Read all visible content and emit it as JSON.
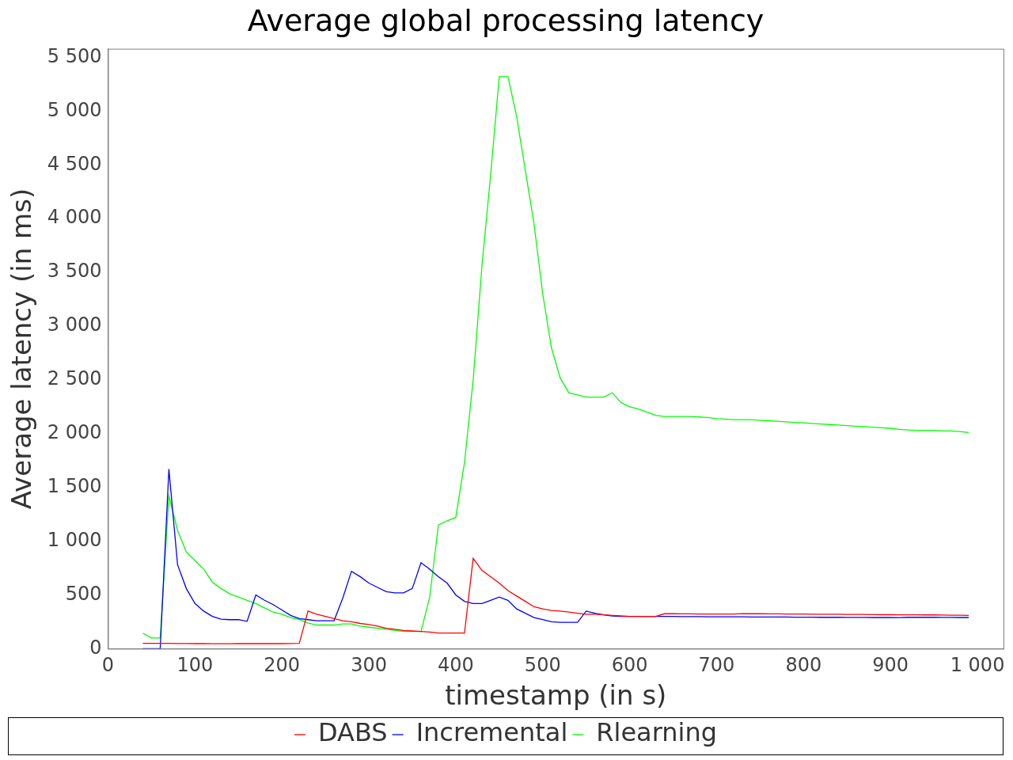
{
  "chart_data": {
    "type": "line",
    "title": "Average global processing latency",
    "x_label": "timestamp (in s)",
    "y_label": "Average latency (in ms)",
    "x": [
      40,
      50,
      60,
      70,
      80,
      90,
      100,
      110,
      120,
      130,
      140,
      150,
      160,
      170,
      180,
      190,
      200,
      210,
      220,
      230,
      240,
      250,
      260,
      270,
      280,
      290,
      300,
      310,
      320,
      330,
      340,
      350,
      360,
      370,
      380,
      390,
      400,
      410,
      420,
      430,
      440,
      450,
      460,
      470,
      480,
      490,
      500,
      510,
      520,
      530,
      540,
      550,
      560,
      570,
      580,
      590,
      600,
      610,
      620,
      630,
      640,
      650,
      660,
      670,
      680,
      690,
      700,
      710,
      720,
      730,
      740,
      750,
      760,
      770,
      780,
      790,
      800,
      810,
      820,
      830,
      840,
      850,
      860,
      870,
      880,
      890,
      900,
      910,
      920,
      930,
      940,
      950,
      960,
      970,
      980,
      990
    ],
    "series": [
      {
        "name": "DABS",
        "color": "#ff0000",
        "values": [
          50,
          50,
          50,
          50,
          48,
          48,
          47,
          47,
          46,
          46,
          46,
          47,
          47,
          47,
          47,
          47,
          47,
          48,
          50,
          350,
          320,
          300,
          280,
          260,
          250,
          235,
          225,
          210,
          190,
          180,
          170,
          165,
          160,
          155,
          145,
          145,
          145,
          145,
          840,
          730,
          670,
          610,
          540,
          490,
          440,
          390,
          370,
          355,
          350,
          340,
          330,
          320,
          320,
          315,
          310,
          305,
          300,
          300,
          300,
          300,
          325,
          325,
          324,
          324,
          323,
          323,
          322,
          322,
          322,
          326,
          325,
          325,
          324,
          324,
          323,
          322,
          322,
          321,
          320,
          320,
          320,
          319,
          318,
          318,
          317,
          316,
          316,
          315,
          315,
          315,
          314,
          314,
          313,
          312,
          312,
          310
        ]
      },
      {
        "name": "Incremental",
        "color": "#0000ff",
        "values": [
          0,
          0,
          0,
          1670,
          780,
          560,
          420,
          350,
          300,
          275,
          270,
          270,
          255,
          500,
          450,
          410,
          360,
          310,
          280,
          270,
          260,
          260,
          260,
          470,
          720,
          670,
          610,
          570,
          530,
          520,
          520,
          560,
          800,
          740,
          670,
          610,
          500,
          440,
          420,
          420,
          450,
          480,
          450,
          370,
          330,
          290,
          270,
          250,
          245,
          245,
          245,
          350,
          330,
          315,
          305,
          300,
          300,
          300,
          300,
          300,
          300,
          300,
          299,
          298,
          298,
          297,
          297,
          296,
          296,
          296,
          295,
          295,
          295,
          294,
          294,
          293,
          293,
          293,
          292,
          292,
          292,
          291,
          291,
          291,
          290,
          290,
          290,
          289,
          292,
          292,
          292,
          292,
          291,
          291,
          290,
          290
        ]
      },
      {
        "name": "Rlearning",
        "color": "#00ff00",
        "values": [
          145,
          100,
          100,
          1420,
          1100,
          900,
          820,
          740,
          620,
          560,
          510,
          480,
          450,
          420,
          380,
          340,
          320,
          290,
          270,
          240,
          220,
          220,
          220,
          230,
          230,
          210,
          200,
          190,
          180,
          170,
          160,
          160,
          160,
          480,
          1150,
          1190,
          1220,
          1730,
          2500,
          3550,
          4400,
          5320,
          5320,
          4950,
          4450,
          3950,
          3300,
          2800,
          2520,
          2380,
          2360,
          2340,
          2340,
          2340,
          2380,
          2290,
          2250,
          2230,
          2200,
          2170,
          2160,
          2160,
          2160,
          2160,
          2155,
          2150,
          2140,
          2135,
          2130,
          2130,
          2130,
          2125,
          2120,
          2115,
          2110,
          2105,
          2100,
          2095,
          2090,
          2085,
          2080,
          2075,
          2070,
          2065,
          2060,
          2055,
          2050,
          2040,
          2035,
          2030,
          2030,
          2030,
          2025,
          2025,
          2020,
          2010
        ]
      }
    ],
    "xlim": [
      0,
      1030
    ],
    "xticks": [
      0,
      100,
      200,
      300,
      400,
      500,
      600,
      700,
      800,
      900,
      {
        "value": 1000,
        "label": "1 000"
      }
    ],
    "ylim": [
      0,
      5580
    ],
    "yticks": [
      0,
      500,
      {
        "value": 1000,
        "label": "1 000"
      },
      {
        "value": 1500,
        "label": "1 500"
      },
      {
        "value": 2000,
        "label": "2 000"
      },
      {
        "value": 2500,
        "label": "2 500"
      },
      {
        "value": 3000,
        "label": "3 000"
      },
      {
        "value": 3500,
        "label": "3 500"
      },
      {
        "value": 4000,
        "label": "4 000"
      },
      {
        "value": 4500,
        "label": "4 500"
      },
      {
        "value": 5000,
        "label": "5 000"
      },
      {
        "value": 5500,
        "label": "5 500"
      }
    ],
    "grid": false,
    "legend": "bottom"
  }
}
